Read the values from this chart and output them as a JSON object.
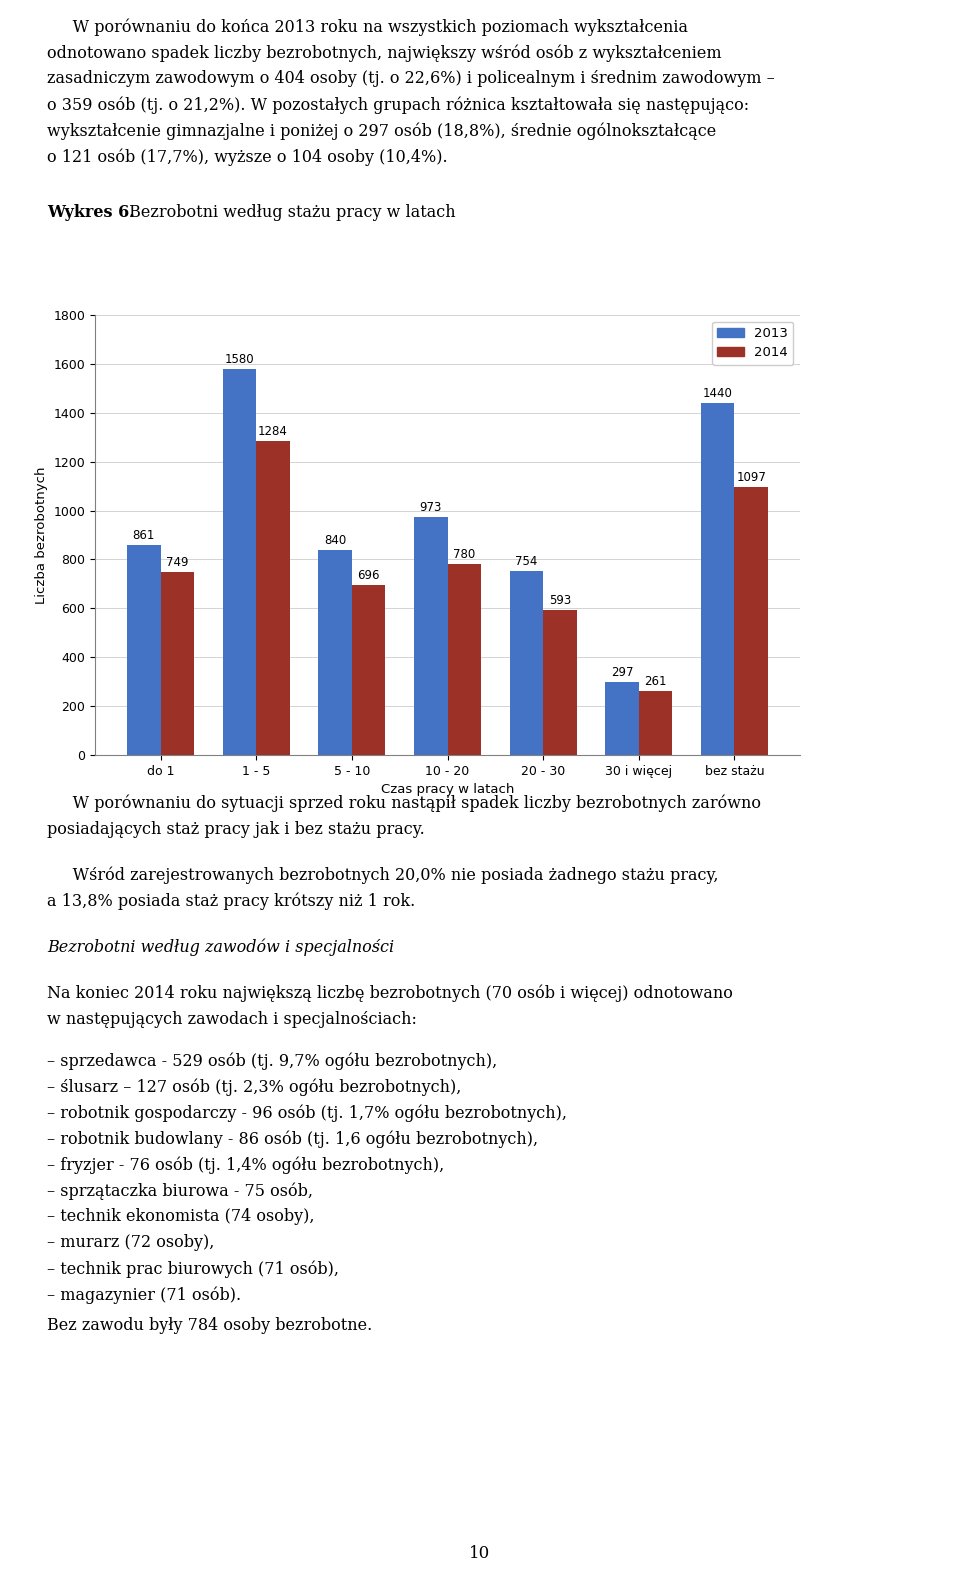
{
  "title": "Bezrobotni według stażu pracy w latach",
  "xlabel": "Czas pracy w latach",
  "ylabel": "Liczba bezrobotnych",
  "categories": [
    "do 1",
    "1 - 5",
    "5 - 10",
    "10 - 20",
    "20 - 30",
    "30 i więcej",
    "bez stażu"
  ],
  "values_2013": [
    861,
    1580,
    840,
    973,
    754,
    297,
    1440
  ],
  "values_2014": [
    749,
    1284,
    696,
    780,
    593,
    261,
    1097
  ],
  "color_2013": "#4472C4",
  "color_2014": "#9B3127",
  "ylim": [
    0,
    1800
  ],
  "yticks": [
    0,
    200,
    400,
    600,
    800,
    1000,
    1200,
    1400,
    1600,
    1800
  ],
  "legend_2013": "2013",
  "legend_2014": "2014",
  "bar_width": 0.35,
  "bar_label_fontsize": 8.5,
  "tick_fontsize": 9,
  "axis_label_fontsize": 9.5,
  "legend_fontsize": 9.5,
  "body_fontsize": 11.5,
  "chart_label_bold": "Wykres 6.",
  "chart_label_normal": " Bezrobotni według stażu pracy w latach",
  "para1_line1": "     W porównaniu do końca 2013 roku na wszystkich poziomach wykształcenia",
  "para1_line2": "odnotowano spadek liczby bezrobotnych, największy wśród osób z wykształceniem",
  "para1_line3": "zasadniczym zawodowym o 404 osoby (tj. o 22,6%) i policealnym i średnim zawodowym –",
  "para1_line4": "o 359 osób (tj. o 21,2%). W pozostałych grupach różnica kształtowała się następująco:",
  "para1_line5": "wykształcenie gimnazjalne i poniżej o 297 osób (18,8%), średnie ogólnokształcące",
  "para1_line6": "o 121 osób (17,7%), wyższe o 104 osoby (10,4%).",
  "below1_line1": "     W porównaniu do sytuacji sprzed roku nastąpił spadek liczby bezrobotnych zarówno",
  "below1_line2": "posiadających staż pracy jak i bez stażu pracy.",
  "below2_line1": "     Wśród zarejestrowanych bezrobotnych 20,0% nie posiada żadnego stażu pracy,",
  "below2_line2": "a 13,8% posiada staż pracy krótszy niż 1 rok.",
  "section_title": "Bezrobotni według zawodów i specjalności",
  "para3_line1": "Na koniec 2014 roku największą liczbę bezrobotnych (70 osób i więcej) odnotowano",
  "para3_line2": "w następujących zawodach i specjalnościach:",
  "list": [
    "– sprzedawca - 529 osób (tj. 9,7% ogółu bezrobotnych),",
    "– ślusarz – 127 osób (tj. 2,3% ogółu bezrobotnych),",
    "– robotnik gospodarczy - 96 osób (tj. 1,7% ogółu bezrobotnych),",
    "– robotnik budowlany - 86 osób (tj. 1,6 ogółu bezrobotnych),",
    "– fryzjer - 76 osób (tj. 1,4% ogółu bezrobotnych),",
    "– sprzątaczka biurowa - 75 osób,",
    "– technik ekonomista (74 osoby),",
    "– murarz (72 osoby),",
    "– technik prac biurowych (71 osób),",
    "– magazynier (71 osób)."
  ],
  "last_line": "Bez zawodu były 784 osoby bezrobotne.",
  "page_number": "10",
  "figure_width": 9.6,
  "figure_height": 15.81
}
